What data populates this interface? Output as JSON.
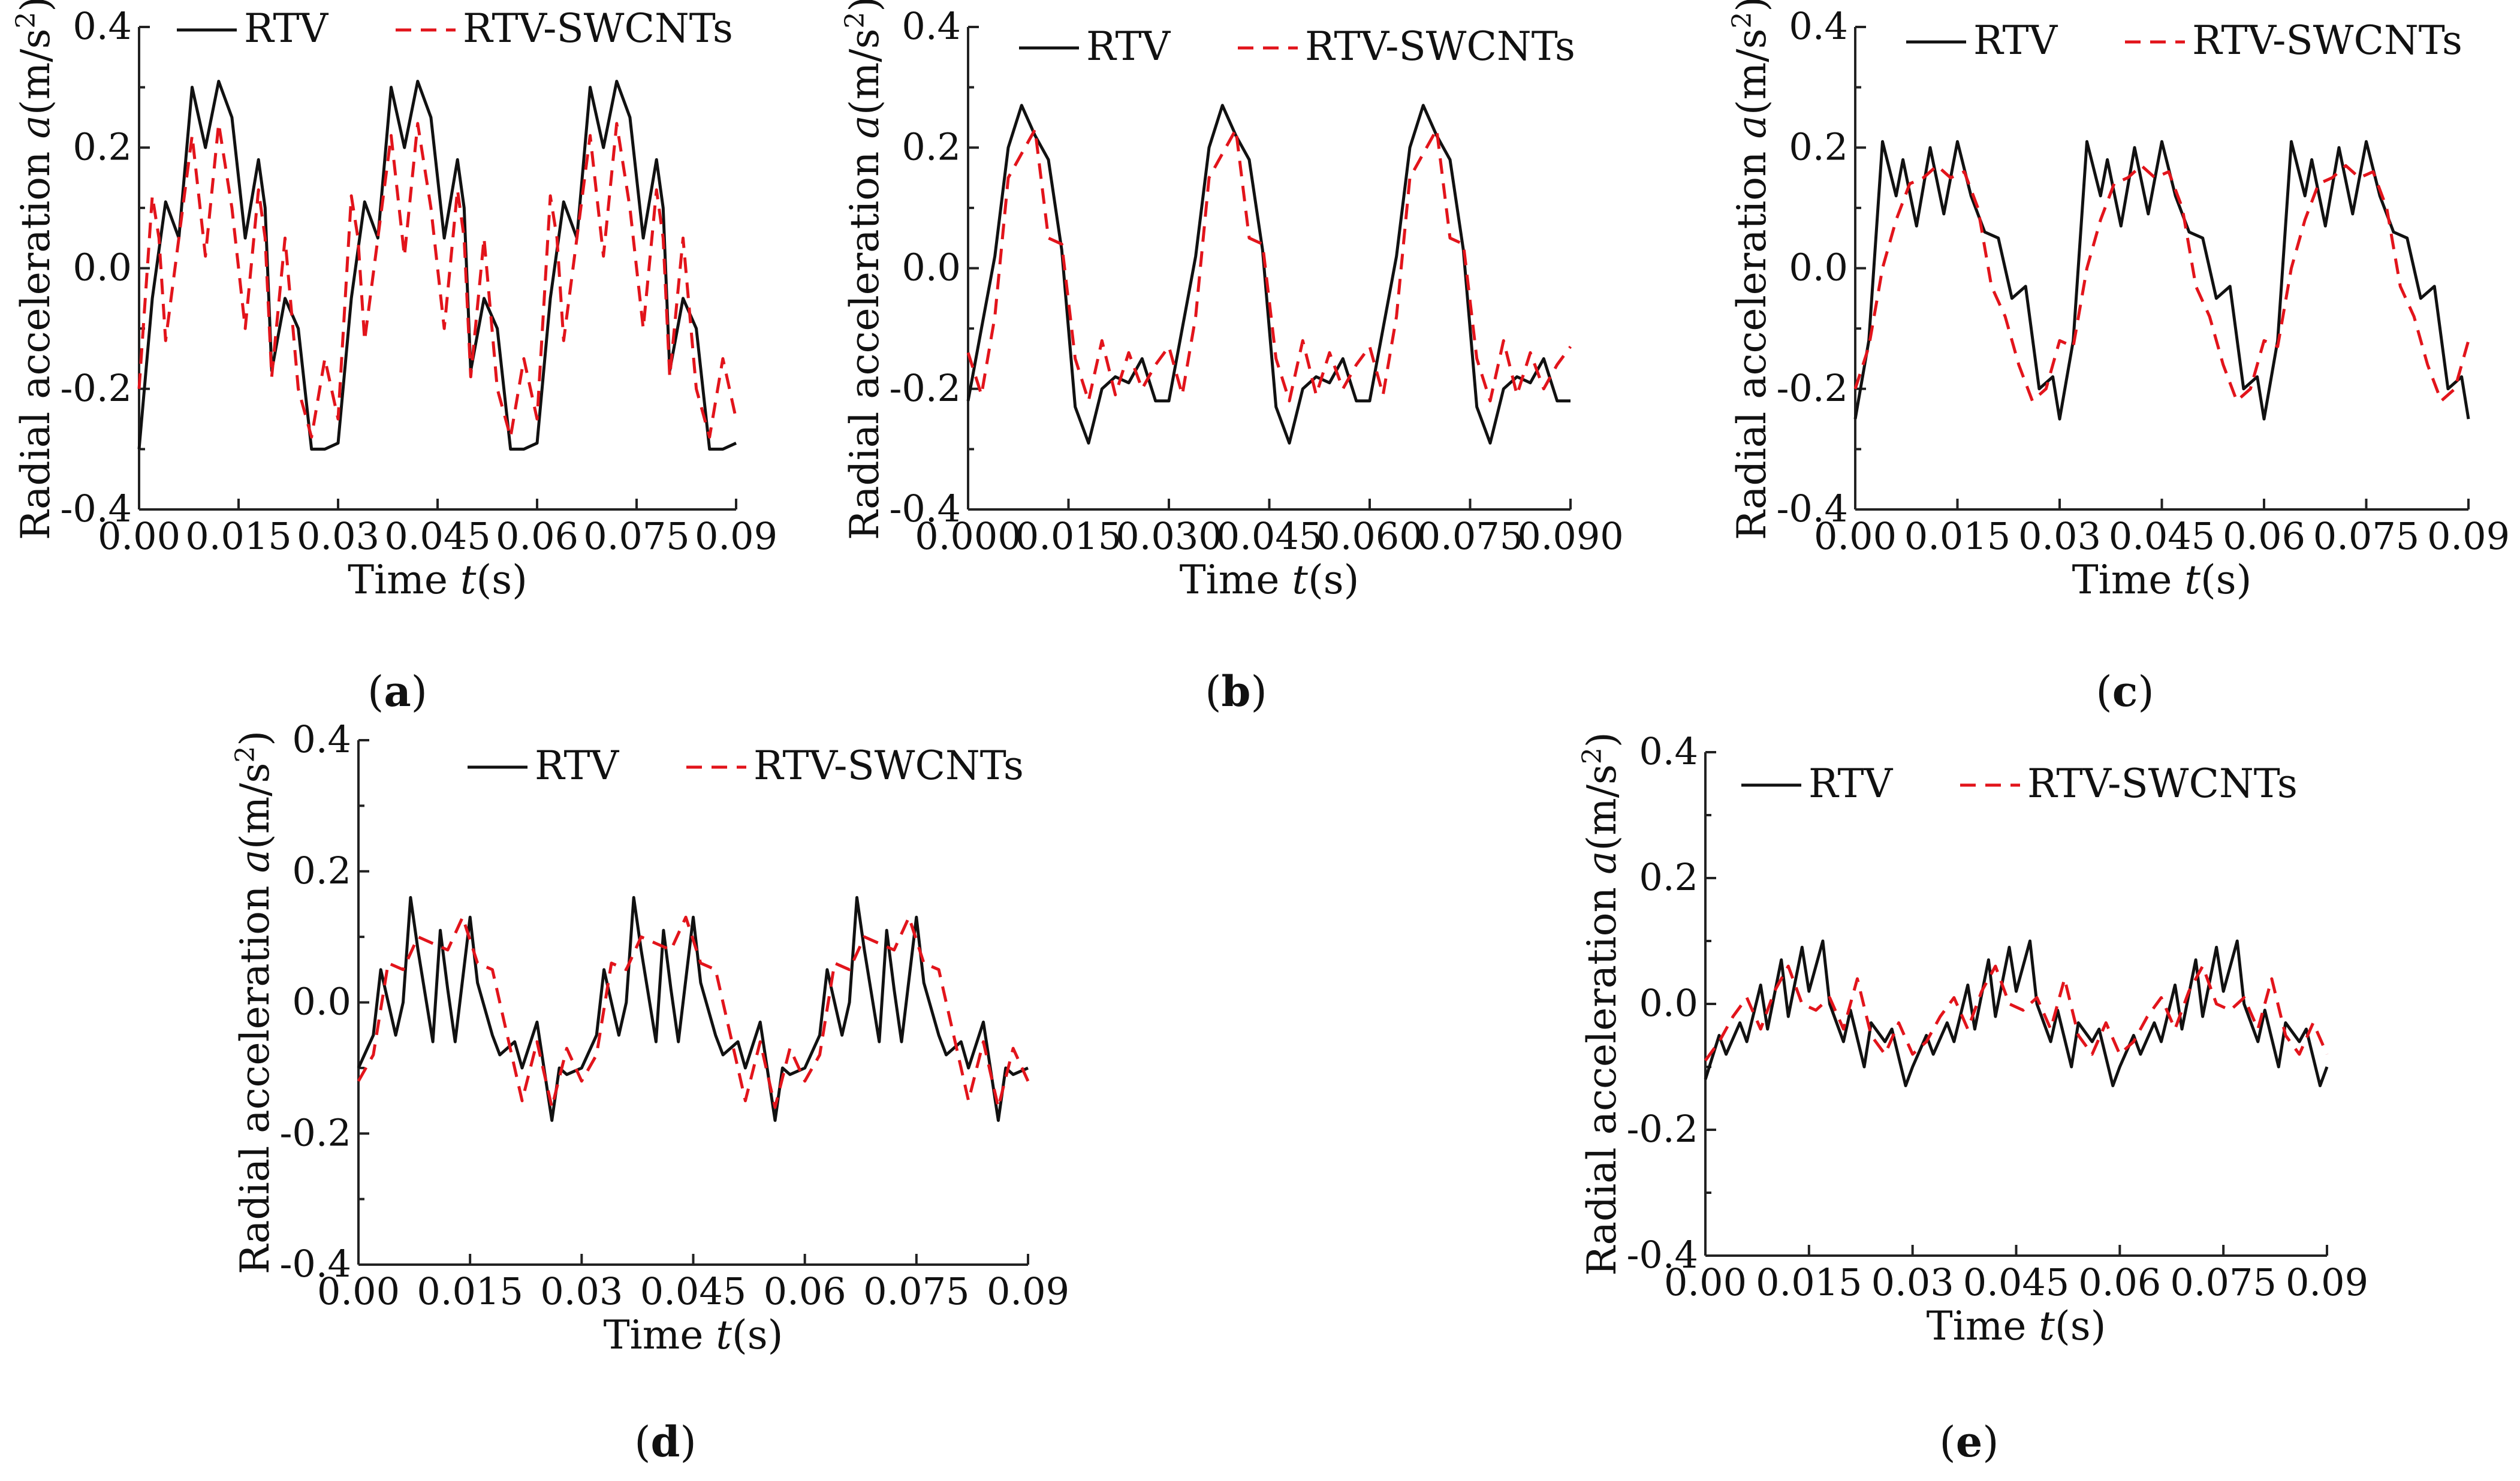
{
  "figure": {
    "ylabel_prefix": "Radial acceleration ",
    "ylabel_var": "a",
    "ylabel_unit": "(m/s",
    "ylabel_sup": "2",
    "ylabel_close": ")",
    "xlabel_prefix": "Time ",
    "xlabel_var": "t",
    "xlabel_unit": "(s)",
    "colors": {
      "rtv": "#111111",
      "swcnt": "#e2141b"
    }
  },
  "chart_data": [
    {
      "type": "line",
      "panel_label": "a",
      "title": "",
      "xlabel": "Time t(s)",
      "ylabel": "Radial acceleration a(m/s2)",
      "xlim": [
        0,
        0.09
      ],
      "ylim": [
        -0.4,
        0.4
      ],
      "xticks": [
        "0.00",
        "0.015",
        "0.03",
        "0.045",
        "0.06",
        "0.075",
        "0.09"
      ],
      "yticks": [
        "-0.4",
        "-0.2",
        "0.0",
        "0.2",
        "0.4"
      ],
      "legend": [
        "RTV",
        "RTV-SWCNTs"
      ],
      "legend_placement": "top-left",
      "period": 0.03,
      "series": [
        {
          "name": "RTV",
          "x": [
            0,
            0.002,
            0.004,
            0.006,
            0.008,
            0.01,
            0.012,
            0.014,
            0.016,
            0.018,
            0.019,
            0.02,
            0.022,
            0.024,
            0.026,
            0.028,
            0.03
          ],
          "values": [
            -0.3,
            -0.05,
            0.11,
            0.05,
            0.3,
            0.2,
            0.31,
            0.25,
            0.05,
            0.18,
            0.1,
            -0.17,
            -0.05,
            -0.1,
            -0.3,
            -0.3,
            -0.29
          ]
        },
        {
          "name": "RTV-SWCNTs",
          "x": [
            0,
            0.002,
            0.003,
            0.004,
            0.006,
            0.008,
            0.01,
            0.012,
            0.014,
            0.016,
            0.018,
            0.019,
            0.02,
            0.022,
            0.024,
            0.026,
            0.028,
            0.03
          ],
          "values": [
            -0.2,
            0.12,
            0.05,
            -0.12,
            0.05,
            0.22,
            0.02,
            0.24,
            0.1,
            -0.1,
            0.13,
            0.05,
            -0.18,
            0.05,
            -0.2,
            -0.28,
            -0.15,
            -0.25
          ]
        }
      ]
    },
    {
      "type": "line",
      "panel_label": "b",
      "title": "",
      "xlabel": "Time t(s)",
      "ylabel": "Radial acceleration a(m/s2)",
      "xlim": [
        0,
        0.09
      ],
      "ylim": [
        -0.4,
        0.4
      ],
      "xticks": [
        "0.000",
        "0.015",
        "0.030",
        "0.045",
        "0.060",
        "0.075",
        "0.090"
      ],
      "yticks": [
        "-0.4",
        "-0.2",
        "0.0",
        "0.2",
        "0.4"
      ],
      "legend": [
        "RTV",
        "RTV-SWCNTs"
      ],
      "legend_placement": "top",
      "period": 0.03,
      "series": [
        {
          "name": "RTV",
          "x": [
            0,
            0.002,
            0.004,
            0.006,
            0.008,
            0.01,
            0.012,
            0.014,
            0.016,
            0.018,
            0.02,
            0.022,
            0.024,
            0.026,
            0.028,
            0.03
          ],
          "values": [
            -0.22,
            -0.1,
            0.02,
            0.2,
            0.27,
            0.22,
            0.18,
            0.03,
            -0.23,
            -0.29,
            -0.2,
            -0.18,
            -0.19,
            -0.15,
            -0.22,
            -0.22
          ]
        },
        {
          "name": "RTV-SWCNTs",
          "x": [
            0,
            0.002,
            0.004,
            0.006,
            0.008,
            0.01,
            0.012,
            0.014,
            0.016,
            0.018,
            0.02,
            0.022,
            0.024,
            0.026,
            0.028,
            0.03
          ],
          "values": [
            -0.14,
            -0.21,
            -0.08,
            0.15,
            0.19,
            0.23,
            0.05,
            0.04,
            -0.15,
            -0.22,
            -0.12,
            -0.21,
            -0.14,
            -0.2,
            -0.16,
            -0.13
          ]
        }
      ]
    },
    {
      "type": "line",
      "panel_label": "c",
      "title": "",
      "xlabel": "Time t(s)",
      "ylabel": "Radial acceleration a(m/s2)",
      "xlim": [
        0,
        0.09
      ],
      "ylim": [
        -0.4,
        0.4
      ],
      "xticks": [
        "0.00",
        "0.015",
        "0.03",
        "0.045",
        "0.06",
        "0.075",
        "0.09"
      ],
      "yticks": [
        "-0.4",
        "-0.2",
        "0.0",
        "0.2",
        "0.4"
      ],
      "legend": [
        "RTV",
        "RTV-SWCNTs"
      ],
      "legend_placement": "top",
      "period": 0.03,
      "series": [
        {
          "name": "RTV",
          "x": [
            0,
            0.002,
            0.004,
            0.006,
            0.007,
            0.009,
            0.011,
            0.013,
            0.015,
            0.017,
            0.019,
            0.021,
            0.023,
            0.025,
            0.027,
            0.029,
            0.03
          ],
          "values": [
            -0.25,
            -0.12,
            0.21,
            0.12,
            0.18,
            0.07,
            0.2,
            0.09,
            0.21,
            0.12,
            0.06,
            0.05,
            -0.05,
            -0.03,
            -0.2,
            -0.18,
            -0.25
          ]
        },
        {
          "name": "RTV-SWCNTs",
          "x": [
            0,
            0.002,
            0.004,
            0.006,
            0.008,
            0.01,
            0.012,
            0.014,
            0.016,
            0.018,
            0.02,
            0.022,
            0.024,
            0.026,
            0.028,
            0.03
          ],
          "values": [
            -0.2,
            -0.13,
            0.0,
            0.08,
            0.14,
            0.15,
            0.17,
            0.15,
            0.16,
            0.1,
            -0.03,
            -0.08,
            -0.16,
            -0.22,
            -0.2,
            -0.12
          ]
        }
      ]
    },
    {
      "type": "line",
      "panel_label": "d",
      "title": "",
      "xlabel": "Time t(s)",
      "ylabel": "Radial acceleration a(m/s2)",
      "xlim": [
        0,
        0.09
      ],
      "ylim": [
        -0.4,
        0.4
      ],
      "xticks": [
        "0.00",
        "0.015",
        "0.03",
        "0.045",
        "0.06",
        "0.075",
        "0.09"
      ],
      "yticks": [
        "-0.4",
        "-0.2",
        "0.0",
        "0.2",
        "0.4"
      ],
      "legend": [
        "RTV",
        "RTV-SWCNTs"
      ],
      "legend_placement": "top",
      "period": 0.03,
      "series": [
        {
          "name": "RTV",
          "x": [
            0,
            0.002,
            0.003,
            0.005,
            0.006,
            0.007,
            0.008,
            0.01,
            0.011,
            0.012,
            0.013,
            0.015,
            0.016,
            0.018,
            0.019,
            0.021,
            0.022,
            0.024,
            0.026,
            0.027,
            0.028,
            0.03
          ],
          "values": [
            -0.1,
            -0.05,
            0.05,
            -0.05,
            0.0,
            0.16,
            0.08,
            -0.06,
            0.11,
            0.02,
            -0.06,
            0.13,
            0.03,
            -0.05,
            -0.08,
            -0.06,
            -0.1,
            -0.03,
            -0.18,
            -0.1,
            -0.11,
            -0.1
          ]
        },
        {
          "name": "RTV-SWCNTs",
          "x": [
            0,
            0.002,
            0.004,
            0.006,
            0.008,
            0.01,
            0.012,
            0.014,
            0.016,
            0.018,
            0.02,
            0.022,
            0.024,
            0.026,
            0.028,
            0.03
          ],
          "values": [
            -0.12,
            -0.08,
            0.06,
            0.05,
            0.1,
            0.09,
            0.08,
            0.13,
            0.06,
            0.05,
            -0.05,
            -0.15,
            -0.06,
            -0.16,
            -0.07,
            -0.12
          ]
        }
      ]
    },
    {
      "type": "line",
      "panel_label": "e",
      "title": "",
      "xlabel": "Time t(s)",
      "ylabel": "Radial acceleration a(m/s2)",
      "xlim": [
        0,
        0.09
      ],
      "ylim": [
        -0.4,
        0.4
      ],
      "xticks": [
        "0.00",
        "0.015",
        "0.03",
        "0.045",
        "0.06",
        "0.075",
        "0.09"
      ],
      "yticks": [
        "-0.4",
        "-0.2",
        "0.0",
        "0.2",
        "0.4"
      ],
      "legend": [
        "RTV",
        "RTV-SWCNTs"
      ],
      "legend_placement": "top",
      "period": 0.03,
      "series": [
        {
          "name": "RTV",
          "x": [
            0,
            0.002,
            0.003,
            0.005,
            0.006,
            0.008,
            0.009,
            0.011,
            0.012,
            0.014,
            0.015,
            0.017,
            0.018,
            0.02,
            0.021,
            0.023,
            0.024,
            0.026,
            0.027,
            0.029,
            0.03
          ],
          "values": [
            -0.12,
            -0.05,
            -0.08,
            -0.03,
            -0.06,
            0.03,
            -0.04,
            0.07,
            -0.02,
            0.09,
            0.02,
            0.1,
            0.0,
            -0.06,
            -0.01,
            -0.1,
            -0.03,
            -0.06,
            -0.04,
            -0.13,
            -0.1
          ]
        },
        {
          "name": "RTV-SWCNTs",
          "x": [
            0,
            0.002,
            0.004,
            0.006,
            0.008,
            0.01,
            0.012,
            0.014,
            0.016,
            0.018,
            0.02,
            0.022,
            0.024,
            0.026,
            0.028,
            0.03
          ],
          "values": [
            -0.09,
            -0.06,
            -0.02,
            0.01,
            -0.04,
            0.02,
            0.06,
            0.0,
            -0.01,
            0.01,
            -0.04,
            0.04,
            -0.05,
            -0.08,
            -0.03,
            -0.08
          ]
        }
      ]
    }
  ]
}
